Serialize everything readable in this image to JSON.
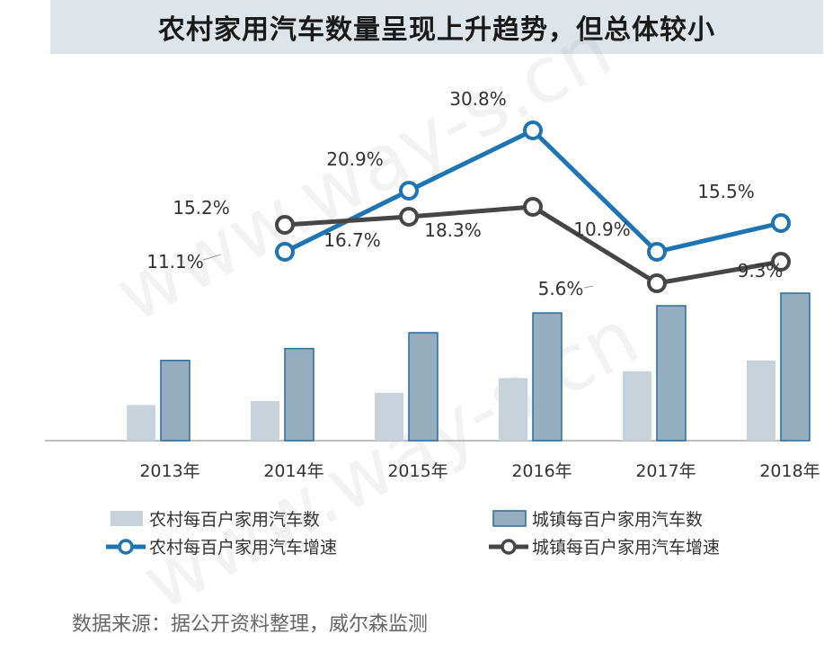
{
  "title": "农村家用汽车数量呈现上升趋势，但总体较小",
  "source": "数据来源：据公开资料整理，威尔森监测",
  "watermark": "www.way-s.cn",
  "colors": {
    "rural_bar": "#c7d2da",
    "urban_bar": "#94aebf",
    "urban_bar_stroke": "#2b6c9a",
    "rural_line": "#1f74b3",
    "urban_line": "#464646",
    "axis": "#a8a8a8",
    "title_bg": "#dde4ea"
  },
  "chart_data": {
    "type": "bar+line",
    "categories": [
      "2013年",
      "2014年",
      "2015年",
      "2016年",
      "2017年",
      "2018年"
    ],
    "bar_series": [
      {
        "name": "农村每百户家用汽车数",
        "values": [
          9.9,
          11.0,
          13.3,
          17.4,
          19.3,
          22.3
        ]
      },
      {
        "name": "城镇每百户家用汽车数",
        "values": [
          22.3,
          25.6,
          30.0,
          35.5,
          37.5,
          41.0
        ]
      }
    ],
    "line_series": [
      {
        "name": "农村每百户家用汽车增速",
        "values": [
          11.1,
          20.9,
          30.8,
          10.9,
          15.5
        ],
        "labels": [
          "11.1%",
          "20.9%",
          "30.8%",
          "10.9%",
          "15.5%"
        ],
        "from_category": 1
      },
      {
        "name": "城镇每百户家用汽车增速",
        "values": [
          15.2,
          16.7,
          18.3,
          5.6,
          9.3
        ],
        "labels": [
          "15.2%",
          "16.7%",
          "18.3%",
          "5.6%",
          "9.3%"
        ],
        "from_category": 1
      }
    ],
    "legend": [
      "农村每百户家用汽车数",
      "城镇每百户家用汽车数",
      "农村每百户家用汽车增速",
      "城镇每百户家用汽车增速"
    ],
    "legend_position": "bottom"
  }
}
